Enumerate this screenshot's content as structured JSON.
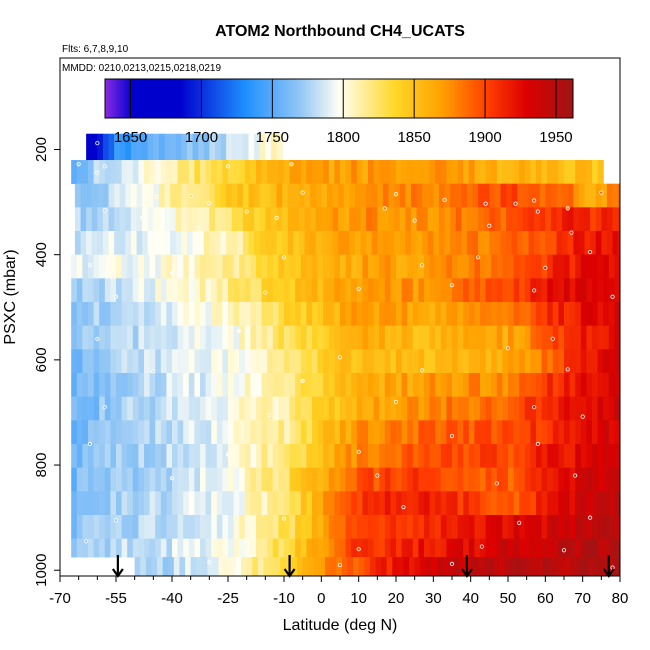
{
  "chart_data": {
    "type": "heatmap",
    "title": "ATOM2 Northbound CH4_UCATS",
    "subtitle_flights": "Flts: 6,7,8,9,10",
    "subtitle_dates": "MMDD: 0210,0213,0215,0218,0219",
    "xlabel": "Latitude (deg N)",
    "ylabel": "PSXC (mbar)",
    "xlim": [
      -70,
      80
    ],
    "ylim": [
      1000,
      100
    ],
    "x_ticks": [
      -70,
      -55,
      -40,
      -25,
      -10,
      0,
      10,
      20,
      30,
      40,
      50,
      60,
      70,
      80
    ],
    "x_tick_labels": [
      "-70",
      "-55",
      "-40",
      "-25",
      "-10",
      "0",
      "10",
      "20",
      "30",
      "40",
      "50",
      "60",
      "70",
      "80"
    ],
    "y_ticks": [
      200,
      400,
      600,
      800,
      1000
    ],
    "y_tick_labels": [
      "200",
      "400",
      "600",
      "800",
      "1000"
    ],
    "colorbar": {
      "min": 1632,
      "max": 1962,
      "ticks": [
        1650,
        1700,
        1750,
        1800,
        1850,
        1900,
        1950
      ],
      "tick_labels": [
        "1650",
        "1700",
        "1750",
        "1800",
        "1850",
        "1900",
        "1950"
      ]
    },
    "arrows_latitude": [
      -54.5,
      -8.5,
      39,
      77
    ],
    "layers": [
      {
        "p_top": 170,
        "p_bot": 220,
        "lat_start": -63,
        "lat_end": -11,
        "nodes": [
          [
            -63,
            1655
          ],
          [
            -60,
            1680
          ],
          [
            -55,
            1735
          ],
          [
            -45,
            1755
          ],
          [
            -30,
            1775
          ],
          [
            -20,
            1790
          ],
          [
            -11,
            1805
          ]
        ]
      },
      {
        "p_top": 220,
        "p_bot": 265,
        "lat_start": -67,
        "lat_end": 75,
        "nodes": [
          [
            -67,
            1760
          ],
          [
            -60,
            1775
          ],
          [
            -45,
            1805
          ],
          [
            -30,
            1830
          ],
          [
            -10,
            1860
          ],
          [
            10,
            1870
          ],
          [
            30,
            1875
          ],
          [
            50,
            1860
          ],
          [
            70,
            1850
          ],
          [
            75,
            1845
          ]
        ]
      },
      {
        "p_top": 265,
        "p_bot": 310,
        "lat_start": -66,
        "lat_end": 80,
        "nodes": [
          [
            -66,
            1765
          ],
          [
            -55,
            1780
          ],
          [
            -40,
            1810
          ],
          [
            -25,
            1840
          ],
          [
            -10,
            1860
          ],
          [
            10,
            1875
          ],
          [
            30,
            1880
          ],
          [
            50,
            1900
          ],
          [
            65,
            1890
          ],
          [
            72,
            1860
          ],
          [
            80,
            1885
          ]
        ]
      },
      {
        "p_top": 310,
        "p_bot": 355,
        "lat_start": -66,
        "lat_end": 80,
        "nodes": [
          [
            -66,
            1775
          ],
          [
            -55,
            1785
          ],
          [
            -40,
            1800
          ],
          [
            -25,
            1825
          ],
          [
            -10,
            1855
          ],
          [
            10,
            1875
          ],
          [
            30,
            1875
          ],
          [
            50,
            1895
          ],
          [
            65,
            1915
          ],
          [
            80,
            1905
          ]
        ]
      },
      {
        "p_top": 355,
        "p_bot": 400,
        "lat_start": -66,
        "lat_end": 80,
        "nodes": [
          [
            -66,
            1785
          ],
          [
            -55,
            1790
          ],
          [
            -40,
            1795
          ],
          [
            -25,
            1810
          ],
          [
            -10,
            1850
          ],
          [
            10,
            1870
          ],
          [
            30,
            1870
          ],
          [
            50,
            1885
          ],
          [
            65,
            1910
          ],
          [
            80,
            1925
          ]
        ]
      },
      {
        "p_top": 400,
        "p_bot": 445,
        "lat_start": -67,
        "lat_end": 80,
        "nodes": [
          [
            -67,
            1790
          ],
          [
            -55,
            1795
          ],
          [
            -40,
            1800
          ],
          [
            -25,
            1815
          ],
          [
            -10,
            1845
          ],
          [
            10,
            1865
          ],
          [
            30,
            1870
          ],
          [
            50,
            1890
          ],
          [
            65,
            1915
          ],
          [
            80,
            1930
          ]
        ]
      },
      {
        "p_top": 445,
        "p_bot": 490,
        "lat_start": -67,
        "lat_end": 80,
        "nodes": [
          [
            -67,
            1770
          ],
          [
            -55,
            1785
          ],
          [
            -40,
            1800
          ],
          [
            -25,
            1815
          ],
          [
            -10,
            1845
          ],
          [
            10,
            1870
          ],
          [
            30,
            1875
          ],
          [
            50,
            1900
          ],
          [
            65,
            1925
          ],
          [
            80,
            1935
          ]
        ]
      },
      {
        "p_top": 490,
        "p_bot": 535,
        "lat_start": -67,
        "lat_end": 80,
        "nodes": [
          [
            -67,
            1765
          ],
          [
            -55,
            1778
          ],
          [
            -40,
            1790
          ],
          [
            -25,
            1805
          ],
          [
            -10,
            1835
          ],
          [
            10,
            1870
          ],
          [
            30,
            1865
          ],
          [
            50,
            1885
          ],
          [
            65,
            1915
          ],
          [
            80,
            1935
          ]
        ]
      },
      {
        "p_top": 535,
        "p_bot": 580,
        "lat_start": -67,
        "lat_end": 80,
        "nodes": [
          [
            -67,
            1765
          ],
          [
            -55,
            1778
          ],
          [
            -40,
            1788
          ],
          [
            -25,
            1795
          ],
          [
            -10,
            1825
          ],
          [
            10,
            1860
          ],
          [
            30,
            1855
          ],
          [
            50,
            1865
          ],
          [
            65,
            1905
          ],
          [
            80,
            1930
          ]
        ]
      },
      {
        "p_top": 580,
        "p_bot": 625,
        "lat_start": -67,
        "lat_end": 80,
        "nodes": [
          [
            -67,
            1762
          ],
          [
            -55,
            1775
          ],
          [
            -40,
            1785
          ],
          [
            -25,
            1795
          ],
          [
            -10,
            1820
          ],
          [
            10,
            1855
          ],
          [
            30,
            1855
          ],
          [
            50,
            1860
          ],
          [
            65,
            1900
          ],
          [
            80,
            1932
          ]
        ]
      },
      {
        "p_top": 625,
        "p_bot": 670,
        "lat_start": -67,
        "lat_end": 80,
        "nodes": [
          [
            -67,
            1758
          ],
          [
            -55,
            1775
          ],
          [
            -40,
            1785
          ],
          [
            -25,
            1795
          ],
          [
            -10,
            1815
          ],
          [
            10,
            1860
          ],
          [
            30,
            1870
          ],
          [
            50,
            1880
          ],
          [
            65,
            1915
          ],
          [
            80,
            1935
          ]
        ]
      },
      {
        "p_top": 670,
        "p_bot": 715,
        "lat_start": -67,
        "lat_end": 80,
        "nodes": [
          [
            -67,
            1755
          ],
          [
            -55,
            1772
          ],
          [
            -40,
            1785
          ],
          [
            -25,
            1795
          ],
          [
            -10,
            1815
          ],
          [
            10,
            1860
          ],
          [
            30,
            1880
          ],
          [
            50,
            1890
          ],
          [
            65,
            1920
          ],
          [
            80,
            1935
          ]
        ]
      },
      {
        "p_top": 715,
        "p_bot": 760,
        "lat_start": -67,
        "lat_end": 80,
        "nodes": [
          [
            -67,
            1755
          ],
          [
            -55,
            1770
          ],
          [
            -40,
            1782
          ],
          [
            -25,
            1795
          ],
          [
            -10,
            1815
          ],
          [
            10,
            1875
          ],
          [
            30,
            1890
          ],
          [
            50,
            1895
          ],
          [
            65,
            1915
          ],
          [
            80,
            1935
          ]
        ]
      },
      {
        "p_top": 760,
        "p_bot": 805,
        "lat_start": -67,
        "lat_end": 80,
        "nodes": [
          [
            -67,
            1760
          ],
          [
            -55,
            1770
          ],
          [
            -40,
            1780
          ],
          [
            -25,
            1795
          ],
          [
            -10,
            1820
          ],
          [
            10,
            1880
          ],
          [
            30,
            1895
          ],
          [
            50,
            1900
          ],
          [
            65,
            1920
          ],
          [
            80,
            1940
          ]
        ]
      },
      {
        "p_top": 805,
        "p_bot": 850,
        "lat_start": -67,
        "lat_end": 80,
        "nodes": [
          [
            -67,
            1760
          ],
          [
            -55,
            1770
          ],
          [
            -40,
            1780
          ],
          [
            -25,
            1795
          ],
          [
            -10,
            1825
          ],
          [
            10,
            1895
          ],
          [
            30,
            1905
          ],
          [
            50,
            1890
          ],
          [
            65,
            1925
          ],
          [
            80,
            1945
          ]
        ]
      },
      {
        "p_top": 850,
        "p_bot": 895,
        "lat_start": -67,
        "lat_end": 80,
        "nodes": [
          [
            -67,
            1765
          ],
          [
            -55,
            1772
          ],
          [
            -40,
            1782
          ],
          [
            -25,
            1795
          ],
          [
            -10,
            1820
          ],
          [
            10,
            1905
          ],
          [
            30,
            1920
          ],
          [
            50,
            1890
          ],
          [
            65,
            1930
          ],
          [
            80,
            1950
          ]
        ]
      },
      {
        "p_top": 895,
        "p_bot": 940,
        "lat_start": -67,
        "lat_end": 80,
        "nodes": [
          [
            -67,
            1765
          ],
          [
            -55,
            1772
          ],
          [
            -40,
            1782
          ],
          [
            -25,
            1795
          ],
          [
            -10,
            1825
          ],
          [
            10,
            1900
          ],
          [
            30,
            1915
          ],
          [
            50,
            1925
          ],
          [
            65,
            1935
          ],
          [
            80,
            1950
          ]
        ]
      },
      {
        "p_top": 940,
        "p_bot": 975,
        "lat_start": -67,
        "lat_end": 80,
        "nodes": [
          [
            -67,
            1770
          ],
          [
            -55,
            1780
          ],
          [
            -40,
            1785
          ],
          [
            -25,
            1795
          ],
          [
            -10,
            1830
          ],
          [
            10,
            1905
          ],
          [
            30,
            1920
          ],
          [
            50,
            1935
          ],
          [
            65,
            1945
          ],
          [
            80,
            1955
          ]
        ]
      },
      {
        "p_top": 975,
        "p_bot": 1010,
        "lat_start": -50,
        "lat_end": 80,
        "nodes": [
          [
            -50,
            1770
          ],
          [
            -40,
            1780
          ],
          [
            -25,
            1800
          ],
          [
            -10,
            1835
          ],
          [
            5,
            1885
          ],
          [
            20,
            1920
          ],
          [
            35,
            1940
          ],
          [
            50,
            1945
          ],
          [
            65,
            1950
          ],
          [
            80,
            1955
          ]
        ]
      }
    ],
    "data_points": [
      [
        -60,
        188,
        1690
      ],
      [
        -65,
        228,
        1770
      ],
      [
        -58,
        232,
        1780
      ],
      [
        -60,
        244,
        1785
      ],
      [
        -25,
        232,
        1830
      ],
      [
        -8,
        228,
        1850
      ],
      [
        -44,
        290,
        1810
      ],
      [
        -35,
        288,
        1830
      ],
      [
        -5,
        282,
        1865
      ],
      [
        20,
        285,
        1870
      ],
      [
        33,
        296,
        1880
      ],
      [
        44,
        303,
        1905
      ],
      [
        52,
        303,
        1910
      ],
      [
        57,
        297,
        1900
      ],
      [
        66,
        312,
        1880
      ],
      [
        75,
        282,
        1890
      ],
      [
        -30,
        302,
        1825
      ],
      [
        -20,
        318,
        1840
      ],
      [
        -58,
        316,
        1780
      ],
      [
        -48,
        330,
        1795
      ],
      [
        -33,
        350,
        1810
      ],
      [
        -12,
        330,
        1845
      ],
      [
        17,
        312,
        1880
      ],
      [
        25,
        335,
        1870
      ],
      [
        45,
        345,
        1900
      ],
      [
        58,
        318,
        1910
      ],
      [
        67,
        358,
        1915
      ],
      [
        -62,
        420,
        1790
      ],
      [
        -40,
        435,
        1800
      ],
      [
        -10,
        405,
        1845
      ],
      [
        27,
        420,
        1870
      ],
      [
        42,
        405,
        1885
      ],
      [
        60,
        425,
        1915
      ],
      [
        72,
        395,
        1925
      ],
      [
        -55,
        480,
        1785
      ],
      [
        -15,
        472,
        1840
      ],
      [
        10,
        465,
        1860
      ],
      [
        35,
        458,
        1875
      ],
      [
        57,
        468,
        1915
      ],
      [
        78,
        480,
        1935
      ],
      [
        -60,
        560,
        1775
      ],
      [
        -22,
        545,
        1800
      ],
      [
        5,
        595,
        1860
      ],
      [
        50,
        578,
        1880
      ],
      [
        62,
        560,
        1910
      ],
      [
        -45,
        622,
        1785
      ],
      [
        -5,
        640,
        1820
      ],
      [
        27,
        620,
        1855
      ],
      [
        66,
        618,
        1910
      ],
      [
        -58,
        690,
        1770
      ],
      [
        -14,
        705,
        1815
      ],
      [
        20,
        680,
        1870
      ],
      [
        57,
        690,
        1920
      ],
      [
        70,
        708,
        1935
      ],
      [
        -62,
        760,
        1760
      ],
      [
        -25,
        780,
        1795
      ],
      [
        10,
        775,
        1880
      ],
      [
        35,
        745,
        1895
      ],
      [
        58,
        760,
        1920
      ],
      [
        -40,
        825,
        1782
      ],
      [
        15,
        820,
        1895
      ],
      [
        47,
        835,
        1900
      ],
      [
        68,
        820,
        1930
      ],
      [
        -55,
        905,
        1770
      ],
      [
        -10,
        902,
        1825
      ],
      [
        22,
        880,
        1910
      ],
      [
        53,
        910,
        1925
      ],
      [
        72,
        900,
        1945
      ],
      [
        -63,
        945,
        1772
      ],
      [
        -20,
        950,
        1805
      ],
      [
        10,
        960,
        1900
      ],
      [
        43,
        955,
        1930
      ],
      [
        65,
        962,
        1945
      ],
      [
        -30,
        985,
        1790
      ],
      [
        5,
        990,
        1885
      ],
      [
        35,
        988,
        1935
      ],
      [
        78,
        995,
        1955
      ]
    ]
  }
}
